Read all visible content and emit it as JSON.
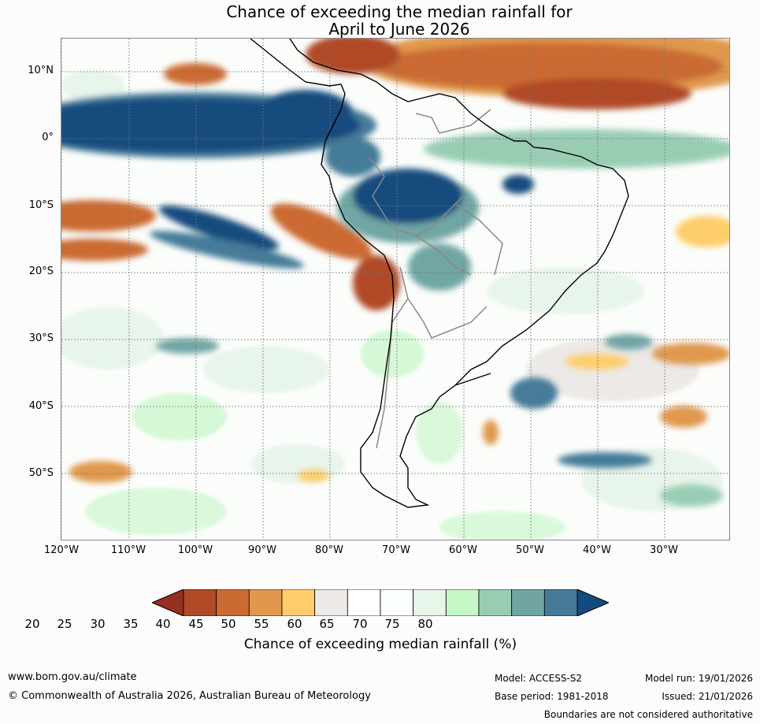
{
  "title_line1": "Chance of exceeding the median rainfall for",
  "title_line2": "April to June 2026",
  "lat_labels": [
    "10°N",
    "0°",
    "10°S",
    "20°S",
    "30°S",
    "40°S",
    "50°S"
  ],
  "lon_labels": [
    "120°W",
    "110°W",
    "100°W",
    "90°W",
    "80°W",
    "70°W",
    "60°W",
    "50°W",
    "40°W",
    "30°W"
  ],
  "legend": {
    "ticks": [
      "20",
      "25",
      "30",
      "35",
      "40",
      "45",
      "50",
      "55",
      "60",
      "65",
      "70",
      "75",
      "80"
    ],
    "colors": [
      "#96301f",
      "#b04a27",
      "#cb6a33",
      "#e0984d",
      "#fdcd6b",
      "#ece9e6",
      "#ffffff",
      "#fbfffd",
      "#e8f5ea",
      "#c4f6c6",
      "#98cdb4",
      "#6fa6a4",
      "#457b99",
      "#134b7e"
    ],
    "title": "Chance of exceeding median rainfall (%)"
  },
  "footer": {
    "url": "www.bom.gov.au/climate",
    "copyright": "© Commonwealth of Australia 2026, Australian Bureau of Meteorology",
    "model": "Model: ACCESS-S2",
    "base_period": "Base period: 1981-2018",
    "model_run": "Model run: 19/01/2026",
    "issued": "Issued: 21/01/2026",
    "disclaimer": "Boundaries are not considered authoritative"
  }
}
